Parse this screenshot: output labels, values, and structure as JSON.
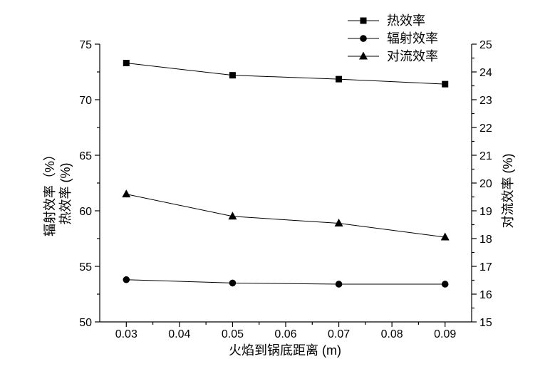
{
  "chart_data": {
    "type": "line",
    "x": [
      0.03,
      0.05,
      0.07,
      0.09
    ],
    "xlabel": "火焰到锅底距离 (m)",
    "ylabel_left": [
      "辐射效率（%）",
      "热效率 (%)"
    ],
    "ylabel_right": "对流效率 (%)",
    "xlim": [
      0.025,
      0.095
    ],
    "ylim_left": [
      50,
      75
    ],
    "ylim_right": [
      15,
      25
    ],
    "xticks": [
      "0.03",
      "0.04",
      "0.05",
      "0.06",
      "0.07",
      "0.08",
      "0.09"
    ],
    "yticks_left": [
      "50",
      "55",
      "60",
      "65",
      "70",
      "75"
    ],
    "yticks_right": [
      "15",
      "16",
      "17",
      "18",
      "19",
      "20",
      "21",
      "22",
      "23",
      "24",
      "25"
    ],
    "series": [
      {
        "name": "热效率",
        "axis": "left",
        "marker": "square",
        "color": "#000000",
        "values": [
          73.3,
          72.2,
          71.85,
          71.4
        ]
      },
      {
        "name": "辐射效率",
        "axis": "left",
        "marker": "circle",
        "color": "#000000",
        "values": [
          53.8,
          53.5,
          53.4,
          53.4
        ]
      },
      {
        "name": "对流效率",
        "axis": "right",
        "marker": "triangle",
        "color": "#000000",
        "values": [
          19.6,
          18.8,
          18.55,
          18.05
        ]
      }
    ],
    "legend": "top-right",
    "grid": false
  }
}
